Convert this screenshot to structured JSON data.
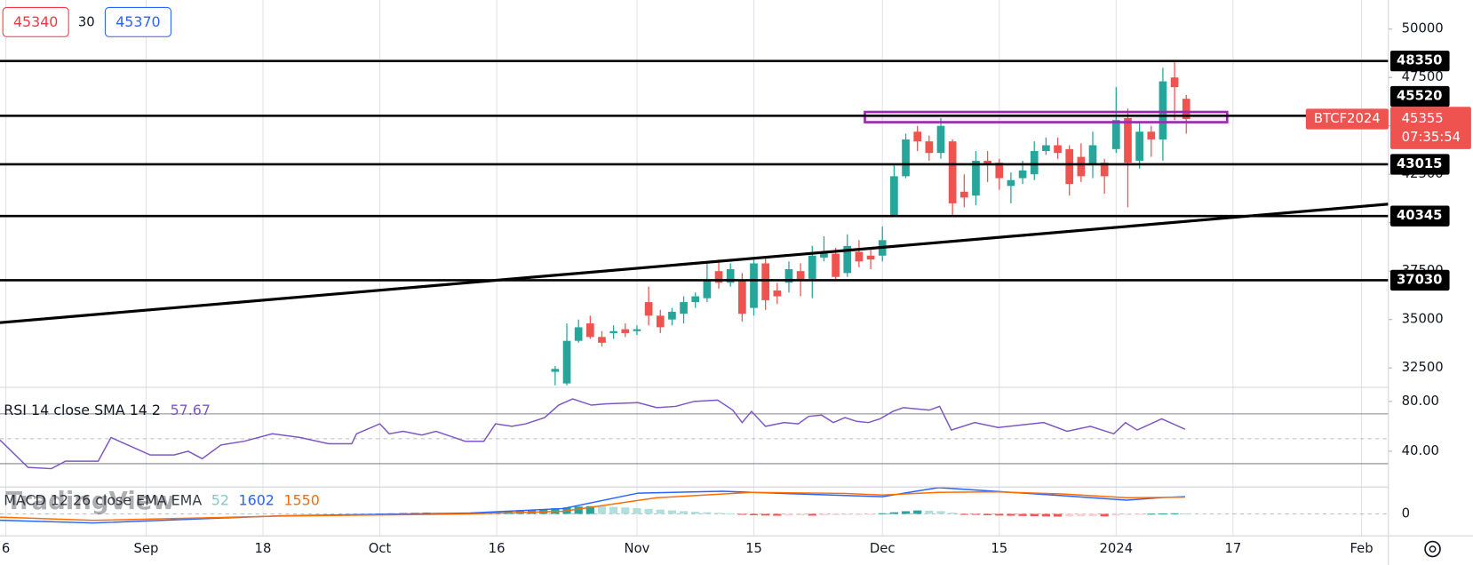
{
  "quote": {
    "bid": 45340,
    "spread": 30,
    "ask": 45370
  },
  "chart_data": [
    {
      "type": "candlestick",
      "symbol": "BTCF2024",
      "countdown": "07:35:54",
      "x": [
        35,
        36,
        37,
        38,
        39,
        40,
        41,
        42,
        43,
        44,
        45,
        46,
        47,
        48,
        49,
        50,
        51,
        52,
        53,
        54,
        55,
        56,
        57,
        58,
        59,
        60,
        61,
        62,
        63,
        64,
        65,
        66,
        67,
        68,
        69,
        70,
        71,
        72,
        73,
        74,
        75,
        76,
        77,
        78,
        79,
        80,
        81,
        82,
        83,
        84,
        85,
        86,
        87,
        88,
        89
      ],
      "open": [
        32300,
        31700,
        33900,
        34800,
        34100,
        34300,
        34500,
        34400,
        35900,
        35200,
        35000,
        35300,
        35900,
        36100,
        37500,
        36900,
        37000,
        35600,
        37900,
        36500,
        36900,
        37500,
        37100,
        38200,
        38400,
        37400,
        38500,
        38300,
        38300,
        40400,
        42400,
        44700,
        44200,
        43600,
        44200,
        41600,
        41400,
        43200,
        43100,
        41900,
        42300,
        42500,
        43700,
        44000,
        43800,
        43400,
        43000,
        43100,
        43800,
        45400,
        43200,
        44700,
        44300,
        47500,
        46400
      ],
      "high": [
        32600,
        34800,
        35000,
        35200,
        34400,
        34700,
        34800,
        34700,
        36700,
        35500,
        35600,
        36200,
        36400,
        38000,
        38100,
        37900,
        37400,
        38100,
        38200,
        36900,
        38000,
        37900,
        38800,
        39300,
        38700,
        39400,
        39100,
        38700,
        39800,
        43000,
        44600,
        45000,
        44500,
        45400,
        44300,
        42500,
        43700,
        43700,
        43300,
        42600,
        43200,
        44200,
        44400,
        44400,
        44000,
        44100,
        44700,
        43300,
        47000,
        45900,
        45200,
        45000,
        48000,
        48300,
        46600
      ],
      "low": [
        31600,
        31600,
        33800,
        34000,
        33600,
        34000,
        34100,
        34200,
        34700,
        34300,
        34700,
        34800,
        35600,
        35900,
        36600,
        36700,
        34900,
        35200,
        35500,
        35800,
        36400,
        36200,
        36100,
        38000,
        37000,
        37200,
        37700,
        37600,
        38000,
        40400,
        42300,
        43700,
        43200,
        43300,
        40400,
        40800,
        40900,
        42100,
        41700,
        41000,
        42000,
        42200,
        43500,
        43300,
        41400,
        42100,
        42300,
        41500,
        43600,
        40800,
        42800,
        43400,
        43200,
        45300,
        44600
      ],
      "close": [
        32450,
        33900,
        34600,
        34100,
        33800,
        34400,
        34300,
        34500,
        35200,
        34600,
        35400,
        35900,
        36200,
        37000,
        36900,
        37600,
        35300,
        37900,
        36000,
        36200,
        37600,
        37000,
        38300,
        38500,
        37200,
        38800,
        38000,
        38100,
        39100,
        42400,
        44300,
        44200,
        43600,
        45000,
        41000,
        41300,
        43200,
        43000,
        42300,
        42200,
        42700,
        43700,
        44000,
        43600,
        42000,
        42400,
        44000,
        42400,
        45300,
        43100,
        44700,
        44300,
        47300,
        47000,
        45355
      ],
      "up_color": "#26a69a",
      "down_color": "#ef5350",
      "xlim": [
        -12.5,
        106.3
      ],
      "ylim": [
        31500,
        51500
      ],
      "yticks": [
        32500,
        35000,
        37500,
        40000,
        42500,
        45000,
        47500,
        50000
      ],
      "xticks": [
        {
          "value": -12,
          "label": "6"
        },
        {
          "value": 0,
          "label": "Sep"
        },
        {
          "value": 10,
          "label": "18"
        },
        {
          "value": 20,
          "label": "Oct"
        },
        {
          "value": 30,
          "label": "16"
        },
        {
          "value": 42,
          "label": "Nov"
        },
        {
          "value": 52,
          "label": "15"
        },
        {
          "value": 63,
          "label": "Dec"
        },
        {
          "value": 73,
          "label": "15"
        },
        {
          "value": 83,
          "label": "2024"
        },
        {
          "value": 93,
          "label": "17"
        },
        {
          "value": 104,
          "label": "Feb"
        }
      ],
      "grid": "vertical",
      "levels": [
        48350,
        45520,
        43015,
        40345,
        37030
      ],
      "trendline": {
        "x": [
          -12.5,
          106.3
        ],
        "y": [
          34840,
          40960
        ]
      },
      "zone": {
        "x": [
          61.5,
          92.5
        ],
        "y": [
          45190,
          45720
        ],
        "color": "#9c27b0"
      }
    },
    {
      "type": "line",
      "label": "RSI 14 close SMA 14 2",
      "x": [
        -12.5,
        -10.1,
        -8.1,
        -6.9,
        -6.1,
        -4.1,
        -3.0,
        0.35,
        2.4,
        3.6,
        4.8,
        6.4,
        8.4,
        10.8,
        13.2,
        15.6,
        17.6,
        18.0,
        20.0,
        20.8,
        22.0,
        23.6,
        24.8,
        27.3,
        28.9,
        29.9,
        31.3,
        32.5,
        34.1,
        35.3,
        36.5,
        38.1,
        39.3,
        42.1,
        43.7,
        45.3,
        46.9,
        48.9,
        50.2,
        51.0,
        51.8,
        53.0,
        54.6,
        55.8,
        56.7,
        57.8,
        58.8,
        59.8,
        60.8,
        61.8,
        62.8,
        63.9,
        64.8,
        67.0,
        67.9,
        68.9,
        70.9,
        72.9,
        74.8,
        76.8,
        78.8,
        80.8,
        82.8,
        83.8,
        84.8,
        86.9,
        88.9
      ],
      "series": [
        {
          "color": "#7e57c2",
          "values": [
            49,
            27,
            26,
            32,
            32,
            32,
            51,
            37,
            37,
            40,
            34,
            45,
            48,
            54,
            51,
            46,
            46,
            54,
            62,
            54,
            56,
            53,
            56,
            48,
            48,
            62,
            60,
            62,
            67,
            77,
            82,
            77,
            78,
            79,
            75,
            76,
            80,
            81,
            73,
            63,
            72,
            60,
            63,
            62,
            68,
            69,
            63,
            67,
            64,
            63,
            66,
            72,
            75,
            73,
            76,
            57,
            63,
            59,
            61,
            63,
            56,
            60,
            54,
            63,
            57,
            66,
            57.67
          ]
        }
      ],
      "ylim": [
        11.3,
        91.3
      ],
      "yticks": [
        {
          "value": 80,
          "label": "80.00"
        },
        {
          "value": 40,
          "label": "40.00"
        }
      ],
      "bands": [
        70,
        50,
        30
      ],
      "band_dash": [
        false,
        true,
        false
      ],
      "band_color": "#787b86"
    },
    {
      "type": "macd",
      "label": "MACD 12 26 close EMA EMA",
      "watermark": "TradingView",
      "hist_x": [
        20,
        21,
        22,
        23,
        24,
        25,
        26,
        27,
        28,
        29,
        30,
        31,
        32,
        33,
        34,
        35,
        36,
        37,
        38,
        39,
        40,
        41,
        42,
        43,
        44,
        45,
        46,
        47,
        48,
        49,
        50,
        51,
        52,
        53,
        54,
        55,
        56,
        57,
        58,
        59,
        60,
        61,
        62,
        63,
        64,
        65,
        66,
        67,
        68,
        69,
        70,
        71,
        72,
        73,
        74,
        75,
        76,
        77,
        78,
        79,
        80,
        81,
        82,
        83,
        84,
        85,
        86,
        87,
        88,
        89
      ],
      "histogram": [
        40,
        60,
        80,
        100,
        120,
        110,
        100,
        90,
        120,
        150,
        200,
        260,
        320,
        380,
        450,
        520,
        600,
        680,
        720,
        700,
        650,
        600,
        540,
        470,
        400,
        330,
        260,
        200,
        150,
        100,
        40,
        -60,
        -120,
        -150,
        -170,
        -150,
        -130,
        -160,
        -140,
        -110,
        -90,
        -70,
        -40,
        60,
        150,
        250,
        320,
        300,
        260,
        120,
        -20,
        -80,
        -120,
        -150,
        -170,
        -190,
        -210,
        -230,
        -250,
        -240,
        -220,
        -200,
        -230,
        -150,
        -80,
        -20,
        20,
        40,
        60,
        52
      ],
      "hist_colors": [
        "#26a69a",
        "#b2dfdb",
        "#ff5252",
        "#ffcdd2"
      ],
      "hist_label_color": "#80cbc4",
      "macd": {
        "color": "#2962ff",
        "x": [
          -12.5,
          -4.5,
          11.6,
          27.7,
          35.7,
          42.1,
          49.3,
          55.8,
          63.0,
          67.8,
          72.6,
          78.3,
          83.9,
          87.1,
          88.9
        ],
        "values": [
          -590,
          -840,
          -170,
          80,
          500,
          1930,
          2100,
          1850,
          1600,
          2445,
          2100,
          1700,
          1280,
          1530,
          1602
        ]
      },
      "signal": {
        "color": "#ff6d00",
        "x": [
          -12.5,
          -4.5,
          11.6,
          27.7,
          35.7,
          43.7,
          51.8,
          59.8,
          63.0,
          67.8,
          72.6,
          78.3,
          83.9,
          88.9
        ],
        "values": [
          -300,
          -600,
          -200,
          0,
          250,
          1500,
          2000,
          1900,
          1750,
          2000,
          2050,
          1850,
          1500,
          1550
        ]
      },
      "ylim": [
        -1600,
        2500
      ],
      "yticks": [
        0
      ]
    }
  ]
}
